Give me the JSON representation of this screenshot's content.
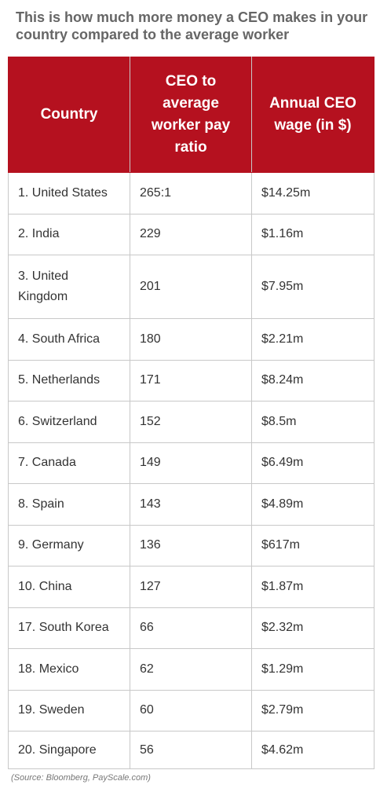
{
  "title": "This is how much more money a CEO makes in your country compared to the average worker",
  "source": "(Source: Bloomberg, PayScale.com)",
  "colors": {
    "header_background": "#b5111f",
    "header_text": "#ffffff",
    "title_text": "#666666"
  },
  "chart_data": {
    "type": "table",
    "title": "This is how much more money a CEO makes in your country compared to the average worker",
    "columns": [
      "Country",
      "CEO to average worker pay ratio",
      "Annual CEO wage (in $)"
    ],
    "rows": [
      [
        "1. United States",
        "265:1",
        "$14.25m"
      ],
      [
        "2. India",
        "229",
        "$1.16m"
      ],
      [
        "3. United Kingdom",
        "201",
        "$7.95m"
      ],
      [
        "4. South Africa",
        "180",
        "$2.21m"
      ],
      [
        "5. Netherlands",
        "171",
        "$8.24m"
      ],
      [
        "6. Switzerland",
        "152",
        "$8.5m"
      ],
      [
        "7. Canada",
        "149",
        "$6.49m"
      ],
      [
        "8. Spain",
        "143",
        "$4.89m"
      ],
      [
        "9. Germany",
        "136",
        "$617m"
      ],
      [
        "10. China",
        "127",
        "$1.87m"
      ],
      [
        "17. South Korea",
        "66",
        "$2.32m"
      ],
      [
        "18. Mexico",
        "62",
        "$1.29m"
      ],
      [
        "19. Sweden",
        "60",
        "$2.79m"
      ],
      [
        "20. Singapore",
        "56",
        "$4.62m"
      ]
    ]
  }
}
